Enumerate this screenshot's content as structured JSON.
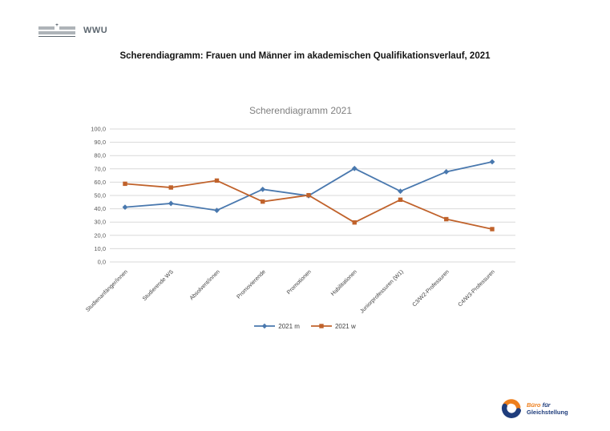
{
  "header": {
    "logo_text": "WWU"
  },
  "title": "Scherendiagramm: Frauen und Männer im akademischen Qualifikationsverlauf, 2021",
  "chart_data": {
    "type": "line",
    "title": "Scherendiagramm 2021",
    "categories": [
      "Studienanfänger/innen",
      "Studierende WS",
      "Absolvent/innen",
      "Promovierende",
      "Promotionen",
      "Habilitationen",
      "Juniorprofessuren (W1)",
      "C3/W2-Professuren",
      "C4/W3-Professuren"
    ],
    "series": [
      {
        "name": "2021 m",
        "color": "#4978ae",
        "marker": "diamond",
        "values": [
          41.2,
          44.0,
          38.8,
          54.6,
          49.8,
          70.3,
          53.2,
          67.8,
          75.3
        ]
      },
      {
        "name": "2021 w",
        "color": "#c0622b",
        "marker": "square",
        "values": [
          58.8,
          56.0,
          61.2,
          45.4,
          50.2,
          29.7,
          46.8,
          32.2,
          24.7
        ]
      }
    ],
    "ylim": [
      0,
      100
    ],
    "ytick_step": 10,
    "ytick_labels": [
      "0,0",
      "10,0",
      "20,0",
      "30,0",
      "40,0",
      "50,0",
      "60,0",
      "70,0",
      "80,0",
      "90,0",
      "100,0"
    ],
    "grid": true,
    "gridline_color": "#d9d9d9",
    "axis_text_color": "#595959",
    "legend_position": "bottom"
  },
  "footer_logo": {
    "word1": "Büro",
    "word2": "für",
    "line2": "Gleichstellung",
    "orange": "#ee7f1d",
    "navy": "#1f3d7c"
  }
}
